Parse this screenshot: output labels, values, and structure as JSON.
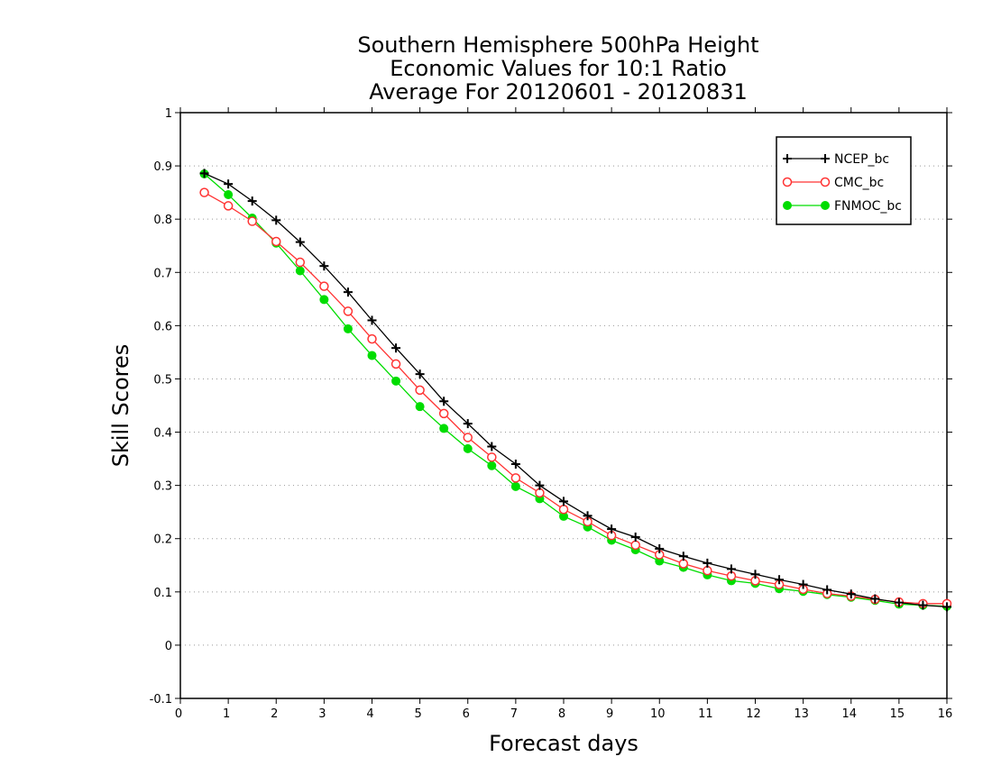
{
  "chart_data": {
    "type": "line",
    "title": [
      "Southern Hemisphere 500hPa Height",
      "Economic Values for 10:1 Ratio",
      "Average For 20120601 - 20120831"
    ],
    "xlabel": "Forecast days",
    "ylabel": "Skill Scores",
    "xlim": [
      0,
      16
    ],
    "ylim": [
      -0.1,
      1
    ],
    "xticks": [
      0,
      1,
      2,
      3,
      4,
      5,
      6,
      7,
      8,
      9,
      10,
      11,
      12,
      13,
      14,
      15,
      16
    ],
    "yticks": [
      -0.1,
      0,
      0.1,
      0.2,
      0.3,
      0.4,
      0.5,
      0.6,
      0.7,
      0.8,
      0.9,
      1
    ],
    "ytick_labels": [
      "-0.1",
      "0",
      "0.1",
      "0.2",
      "0.3",
      "0.4",
      "0.5",
      "0.6",
      "0.7",
      "0.8",
      "0.9",
      "1"
    ],
    "grid": "horizontal dotted",
    "legend_position": "top-right",
    "x": [
      0.5,
      1,
      1.5,
      2,
      2.5,
      3,
      3.5,
      4,
      4.5,
      5,
      5.5,
      6,
      6.5,
      7,
      7.5,
      8,
      8.5,
      9,
      9.5,
      10,
      10.5,
      11,
      11.5,
      12,
      12.5,
      13,
      13.5,
      14,
      14.5,
      15,
      15.5,
      16
    ],
    "series": [
      {
        "name": "NCEP_bc",
        "color": "#000000",
        "marker": "plus",
        "values": [
          0.886,
          0.866,
          0.834,
          0.798,
          0.757,
          0.712,
          0.663,
          0.61,
          0.558,
          0.509,
          0.458,
          0.416,
          0.373,
          0.34,
          0.3,
          0.27,
          0.243,
          0.218,
          0.203,
          0.181,
          0.167,
          0.154,
          0.143,
          0.133,
          0.123,
          0.114,
          0.104,
          0.096,
          0.087,
          0.08,
          0.075,
          0.072
        ]
      },
      {
        "name": "CMC_bc",
        "color": "#ff3333",
        "marker": "open-circle",
        "values": [
          0.85,
          0.825,
          0.796,
          0.758,
          0.719,
          0.674,
          0.627,
          0.575,
          0.528,
          0.479,
          0.435,
          0.39,
          0.353,
          0.314,
          0.286,
          0.255,
          0.232,
          0.206,
          0.188,
          0.17,
          0.153,
          0.14,
          0.13,
          0.121,
          0.114,
          0.105,
          0.097,
          0.092,
          0.086,
          0.081,
          0.078,
          0.078
        ]
      },
      {
        "name": "FNMOC_bc",
        "color": "#00dd00",
        "marker": "filled-circle",
        "values": [
          0.885,
          0.846,
          0.802,
          0.755,
          0.703,
          0.649,
          0.594,
          0.544,
          0.496,
          0.448,
          0.407,
          0.369,
          0.337,
          0.298,
          0.275,
          0.242,
          0.222,
          0.197,
          0.179,
          0.158,
          0.146,
          0.132,
          0.121,
          0.116,
          0.106,
          0.101,
          0.095,
          0.09,
          0.084,
          0.077,
          0.075,
          0.073
        ]
      }
    ]
  }
}
